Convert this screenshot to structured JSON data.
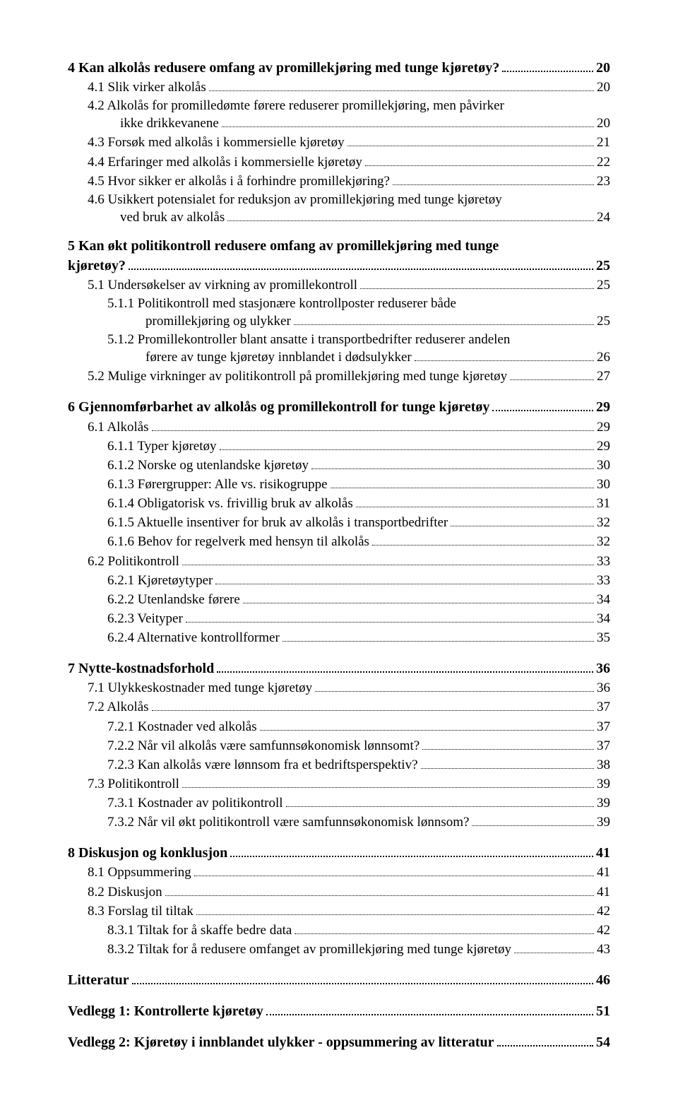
{
  "toc": [
    {
      "lvl": 1,
      "t": "4 Kan alkolås redusere omfang av promillekjøring med tunge kjøretøy?",
      "p": "20"
    },
    {
      "lvl": 2,
      "t": "4.1 Slik virker alkolås",
      "p": "20"
    },
    {
      "lvl": 2,
      "t": "4.2 Alkolås for promilledømte førere reduserer promillekjøring, men påvirker",
      "cont": "ikke drikkevanene",
      "p": "20"
    },
    {
      "lvl": 2,
      "t": "4.3 Forsøk med alkolås i kommersielle kjøretøy",
      "p": "21"
    },
    {
      "lvl": 2,
      "t": "4.4 Erfaringer med alkolås i kommersielle kjøretøy",
      "p": "22"
    },
    {
      "lvl": 2,
      "t": "4.5 Hvor sikker er alkolås i å forhindre promillekjøring?",
      "p": "23"
    },
    {
      "lvl": 2,
      "t": "4.6 Usikkert potensialet for reduksjon av promillekjøring med tunge kjøretøy",
      "cont": "ved bruk av alkolås",
      "p": "24"
    },
    {
      "lvl": 1,
      "t": "5 Kan økt politikontroll redusere omfang av promillekjøring med tunge",
      "cont": "kjøretøy?",
      "p": "25"
    },
    {
      "lvl": 2,
      "t": "5.1 Undersøkelser av virkning av promillekontroll",
      "p": "25"
    },
    {
      "lvl": 3,
      "t": "5.1.1 Politikontroll med stasjonære kontrollposter reduserer både",
      "cont": "promillekjøring og ulykker",
      "p": "25"
    },
    {
      "lvl": 3,
      "t": "5.1.2 Promillekontroller blant ansatte i transportbedrifter reduserer andelen",
      "cont": "førere av tunge kjøretøy innblandet i dødsulykker",
      "p": "26"
    },
    {
      "lvl": 2,
      "t": "5.2 Mulige virkninger av politikontroll på promillekjøring med tunge kjøretøy",
      "p": "27"
    },
    {
      "lvl": 1,
      "t": "6 Gjennomførbarhet av alkolås og promillekontroll for tunge kjøretøy",
      "p": "29"
    },
    {
      "lvl": 2,
      "t": "6.1 Alkolås",
      "p": "29"
    },
    {
      "lvl": 3,
      "t": "6.1.1 Typer kjøretøy",
      "p": "29"
    },
    {
      "lvl": 3,
      "t": "6.1.2 Norske og utenlandske kjøretøy",
      "p": "30"
    },
    {
      "lvl": 3,
      "t": "6.1.3 Førergrupper: Alle vs. risikogruppe",
      "p": "30"
    },
    {
      "lvl": 3,
      "t": "6.1.4 Obligatorisk vs. frivillig bruk av alkolås",
      "p": "31"
    },
    {
      "lvl": 3,
      "t": "6.1.5 Aktuelle insentiver for bruk av alkolås i transportbedrifter",
      "p": "32"
    },
    {
      "lvl": 3,
      "t": "6.1.6 Behov for regelverk med hensyn til alkolås",
      "p": "32"
    },
    {
      "lvl": 2,
      "t": "6.2 Politikontroll",
      "p": "33"
    },
    {
      "lvl": 3,
      "t": "6.2.1 Kjøretøytyper",
      "p": "33"
    },
    {
      "lvl": 3,
      "t": "6.2.2 Utenlandske førere",
      "p": "34"
    },
    {
      "lvl": 3,
      "t": "6.2.3 Veityper",
      "p": "34"
    },
    {
      "lvl": 3,
      "t": "6.2.4 Alternative kontrollformer",
      "p": "35"
    },
    {
      "lvl": 1,
      "t": "7 Nytte-kostnadsforhold",
      "p": "36"
    },
    {
      "lvl": 2,
      "t": "7.1 Ulykkeskostnader med tunge kjøretøy",
      "p": "36"
    },
    {
      "lvl": 2,
      "t": "7.2 Alkolås",
      "p": "37"
    },
    {
      "lvl": 3,
      "t": "7.2.1 Kostnader ved alkolås",
      "p": "37"
    },
    {
      "lvl": 3,
      "t": "7.2.2 Når vil alkolås være samfunnsøkonomisk lønnsomt?",
      "p": "37"
    },
    {
      "lvl": 3,
      "t": "7.2.3 Kan alkolås være lønnsom fra et bedriftsperspektiv?",
      "p": "38"
    },
    {
      "lvl": 2,
      "t": "7.3 Politikontroll",
      "p": "39"
    },
    {
      "lvl": 3,
      "t": "7.3.1 Kostnader av politikontroll",
      "p": "39"
    },
    {
      "lvl": 3,
      "t": "7.3.2 Når vil økt politikontroll være samfunnsøkonomisk lønnsom?",
      "p": "39"
    },
    {
      "lvl": 1,
      "t": "8 Diskusjon og konklusjon",
      "p": "41"
    },
    {
      "lvl": 2,
      "t": "8.1 Oppsummering",
      "p": "41"
    },
    {
      "lvl": 2,
      "t": "8.2 Diskusjon",
      "p": "41"
    },
    {
      "lvl": 2,
      "t": "8.3 Forslag til tiltak",
      "p": "42"
    },
    {
      "lvl": 3,
      "t": "8.3.1 Tiltak for å skaffe bedre data",
      "p": "42"
    },
    {
      "lvl": 3,
      "t": "8.3.2 Tiltak for å redusere omfanget av promillekjøring med tunge kjøretøy",
      "p": "43"
    },
    {
      "lvl": 1,
      "t": "Litteratur",
      "p": "46"
    },
    {
      "lvl": 1,
      "t": "Vedlegg 1: Kontrollerte kjøretøy",
      "p": "51"
    },
    {
      "lvl": 1,
      "t": "Vedlegg 2: Kjøretøy i innblandet ulykker - oppsummering av litteratur",
      "p": "54"
    }
  ]
}
